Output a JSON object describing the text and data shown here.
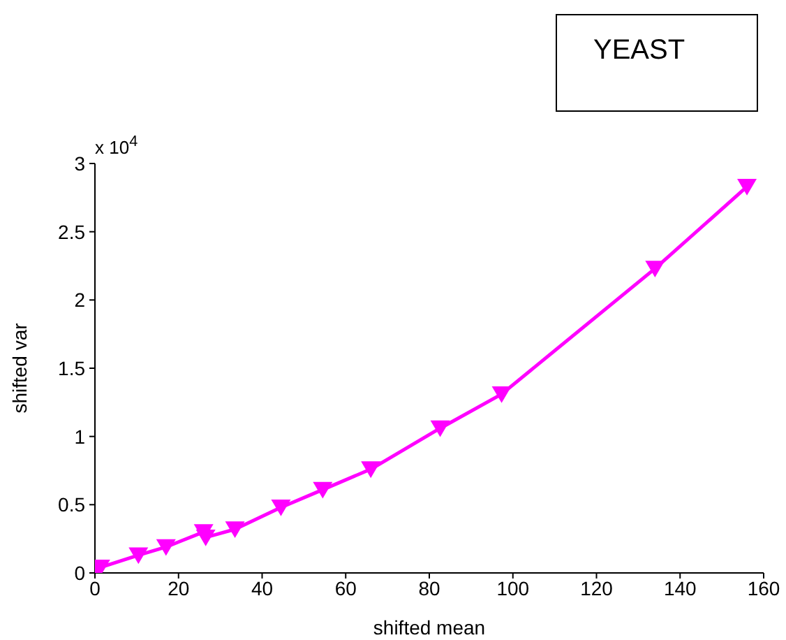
{
  "chart_data": {
    "type": "line",
    "xlabel": "shifted mean",
    "ylabel": "shifted var",
    "annotations": [
      "YEAST",
      "x 10$^{4}$"
    ],
    "series": [
      {
        "color": "#ff00ff",
        "x": [
          0,
          1.3,
          10.4,
          17,
          26,
          26.5,
          33.5,
          44.5,
          54.5,
          66,
          82.6,
          97.3,
          134,
          156
        ],
        "values": [
          0.02,
          0.04,
          0.13,
          0.19,
          0.3,
          0.26,
          0.32,
          0.48,
          0.61,
          0.76,
          1.06,
          1.31,
          2.23,
          2.83
        ]
      }
    ],
    "xlim": [
      0,
      160
    ],
    "xticks": [
      0,
      20,
      40,
      60,
      80,
      100,
      120,
      140,
      160
    ],
    "ylim": [
      0,
      3
    ],
    "yticks": [
      0,
      0.5,
      1,
      1.5,
      2,
      2.5,
      3
    ],
    "marker": "triangle-down",
    "line_style": "solid",
    "grid": false,
    "legend": false
  }
}
